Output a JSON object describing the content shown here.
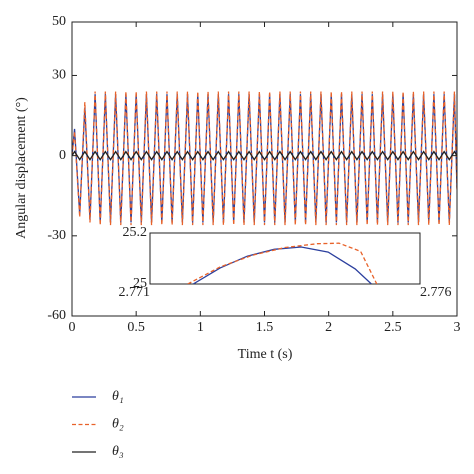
{
  "chart_data": [
    {
      "type": "line",
      "xlabel": "Time t (s)",
      "ylabel": "Angular displacement (°)",
      "xlim": [
        0,
        3
      ],
      "ylim": [
        -60,
        50
      ],
      "xticks": [
        0,
        0.5,
        1,
        1.5,
        2,
        2.5,
        3
      ],
      "yticks": [
        -60,
        -30,
        0,
        30,
        50
      ],
      "legend": "below",
      "grid": false,
      "x": [
        0,
        0.02,
        0.06,
        0.1,
        0.14,
        0.18,
        0.22,
        0.26,
        0.3,
        0.34,
        0.38,
        0.42,
        0.46,
        0.5,
        0.54,
        0.58,
        0.62,
        0.66,
        0.7,
        0.74,
        0.78,
        0.82,
        0.86,
        0.9,
        0.94,
        0.98,
        1.02,
        1.06,
        1.1,
        1.14,
        1.18,
        1.22,
        1.26,
        1.3,
        1.34,
        1.38,
        1.42,
        1.46,
        1.5,
        1.54,
        1.58,
        1.62,
        1.66,
        1.7,
        1.74,
        1.78,
        1.82,
        1.86,
        1.9,
        1.94,
        1.98,
        2.02,
        2.06,
        2.1,
        2.14,
        2.18,
        2.22,
        2.26,
        2.3,
        2.34,
        2.38,
        2.42,
        2.46,
        2.5,
        2.54,
        2.58,
        2.62,
        2.66,
        2.7,
        2.74,
        2.78,
        2.82,
        2.86,
        2.9,
        2.94,
        2.98,
        3
      ],
      "series": [
        {
          "name": "θ₁",
          "color": "#2b3f9e",
          "dash": false,
          "values": [
            0,
            10,
            -22,
            18,
            -24,
            23,
            -25,
            23,
            -25,
            23,
            -25,
            23,
            -25,
            23,
            -25,
            23,
            -25,
            23,
            -25,
            23,
            -25,
            23,
            -25,
            23,
            -25,
            23,
            -25,
            23,
            -25,
            23,
            -25,
            23,
            -25,
            23,
            -25,
            23,
            -25,
            23,
            -25,
            23,
            -25,
            23,
            -25,
            23,
            -25,
            23,
            -25,
            23,
            -25,
            23,
            -25,
            23,
            -25,
            23,
            -25,
            23,
            -25,
            23,
            -25,
            23,
            -25,
            23,
            -25,
            23,
            -25,
            23,
            -25,
            23,
            -25,
            23,
            -25,
            23,
            -25,
            23,
            -25,
            23,
            -12
          ]
        },
        {
          "name": "θ₂",
          "color": "#e8622a",
          "dash": true,
          "values": [
            0,
            9,
            -23,
            20,
            -25,
            24,
            -26,
            24,
            -26,
            24,
            -26,
            24,
            -26,
            24,
            -26,
            24,
            -26,
            24,
            -26,
            24,
            -26,
            24,
            -26,
            24,
            -26,
            24,
            -26,
            24,
            -26,
            24,
            -26,
            24,
            -26,
            24,
            -26,
            24,
            -26,
            24,
            -26,
            24,
            -26,
            24,
            -26,
            24,
            -26,
            24,
            -26,
            24,
            -26,
            24,
            -26,
            24,
            -26,
            24,
            -26,
            24,
            -26,
            24,
            -26,
            24,
            -26,
            24,
            -26,
            24,
            -26,
            24,
            -26,
            24,
            -26,
            24,
            -26,
            24,
            -26,
            24,
            -26,
            24,
            -13
          ]
        },
        {
          "name": "θ₃",
          "color": "#222222",
          "dash": false,
          "values": [
            0,
            1.5,
            -1.5,
            1.5,
            -1.5,
            1.5,
            -1.5,
            1.5,
            -1.5,
            1.5,
            -1.5,
            1.5,
            -1.5,
            1.5,
            -1.5,
            1.5,
            -1.5,
            1.5,
            -1.5,
            1.5,
            -1.5,
            1.5,
            -1.5,
            1.5,
            -1.5,
            1.5,
            -1.5,
            1.5,
            -1.5,
            1.5,
            -1.5,
            1.5,
            -1.5,
            1.5,
            -1.5,
            1.5,
            -1.5,
            1.5,
            -1.5,
            1.5,
            -1.5,
            1.5,
            -1.5,
            1.5,
            -1.5,
            1.5,
            -1.5,
            1.5,
            -1.5,
            1.5,
            -1.5,
            1.5,
            -1.5,
            1.5,
            -1.5,
            1.5,
            -1.5,
            1.5,
            -1.5,
            1.5,
            -1.5,
            1.5,
            -1.5,
            1.5,
            -1.5,
            1.5,
            -1.5,
            1.5,
            -1.5,
            1.5,
            -1.5,
            1.5,
            -1.5,
            1.5,
            -1.5,
            1.5,
            0
          ]
        }
      ]
    },
    {
      "type": "line",
      "xlim": [
        2.771,
        2.776
      ],
      "ylim": [
        25,
        25.2
      ],
      "xticks": [
        2.771,
        2.776
      ],
      "yticks": [
        25,
        25.2
      ],
      "series": [
        {
          "color": "#2b3f9e",
          "dash": false,
          "x": [
            2.7718,
            2.7723,
            2.7728,
            2.7733,
            2.7738,
            2.7743,
            2.7748,
            2.7751
          ],
          "values": [
            25.0,
            25.063,
            25.109,
            25.136,
            25.145,
            25.125,
            25.059,
            25.0
          ]
        },
        {
          "color": "#e8622a",
          "dash": true,
          "x": [
            2.7717,
            2.7723,
            2.7729,
            2.7735,
            2.7741,
            2.7745,
            2.7749,
            2.7752
          ],
          "values": [
            25.0,
            25.067,
            25.113,
            25.143,
            25.158,
            25.16,
            25.128,
            25.0
          ]
        }
      ]
    }
  ]
}
